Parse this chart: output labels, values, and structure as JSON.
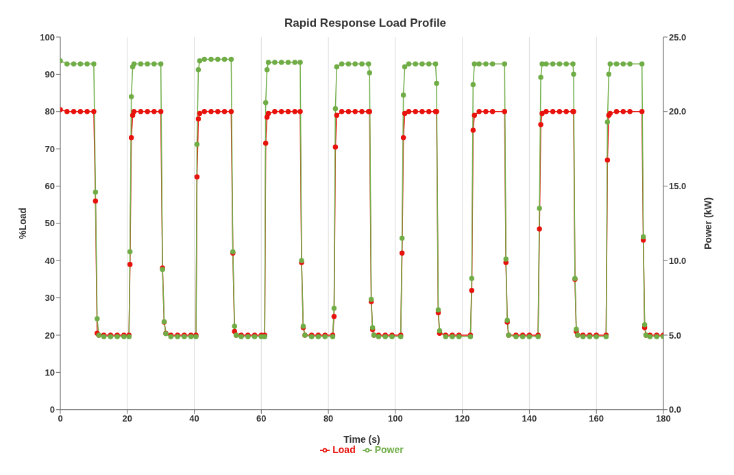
{
  "chart_data": {
    "type": "line",
    "title": "Rapid Response Load Profile",
    "xlabel": "Time (s)",
    "ylabel": "%Load",
    "y2label": "Power (kW)",
    "x": [
      0,
      2,
      4,
      6,
      8,
      10,
      10.5,
      11,
      11.5,
      13,
      15,
      17,
      19,
      20.5,
      20.8,
      21.2,
      21.6,
      22,
      24,
      26,
      28,
      30,
      30.5,
      31,
      31.5,
      33,
      35,
      37,
      39,
      40.5,
      40.8,
      41.2,
      41.6,
      43,
      45,
      47,
      49,
      51,
      51.5,
      52,
      52.5,
      54,
      56,
      58,
      60,
      61,
      61.3,
      61.7,
      62.1,
      64,
      66,
      68,
      70,
      71.6,
      72,
      72.5,
      73,
      75,
      77,
      79,
      81.3,
      81.7,
      82.1,
      82.5,
      84,
      86,
      88,
      90,
      92,
      92.3,
      92.8,
      93.2,
      93.6,
      95,
      97,
      99,
      101.6,
      102,
      102.4,
      102.8,
      104,
      106,
      108,
      110,
      112,
      112.3,
      112.8,
      113.2,
      115,
      117,
      119,
      122.4,
      122.8,
      123.2,
      123.6,
      125,
      127,
      129,
      132.6,
      133,
      133.4,
      133.8,
      136,
      138,
      140,
      142.6,
      143,
      143.4,
      143.8,
      145,
      147,
      149,
      151,
      153,
      153.2,
      153.6,
      154,
      154.4,
      156,
      158,
      160,
      162.9,
      163.3,
      163.7,
      164.1,
      166,
      168,
      170,
      173.6,
      174,
      174.4,
      174.8,
      176,
      178,
      180
    ],
    "series": [
      {
        "name": "Load",
        "color": "#e8120c",
        "values": [
          80.5,
          80,
          80,
          80,
          80,
          80,
          56,
          20.5,
          20,
          20,
          20,
          20,
          20,
          20,
          39,
          73,
          79,
          80,
          80,
          80,
          80,
          80,
          38,
          23.5,
          20.5,
          20,
          20,
          20,
          20,
          20,
          62.5,
          78,
          79.5,
          80,
          80,
          80,
          80,
          80,
          42,
          21,
          20,
          20,
          20,
          20,
          20,
          20,
          71.5,
          78.5,
          79.5,
          80,
          80,
          80,
          80,
          80,
          39.5,
          22,
          20,
          20,
          20,
          20,
          20,
          25,
          70.5,
          79,
          80,
          80,
          80,
          80,
          80,
          80,
          29,
          21.5,
          20,
          20,
          20,
          20,
          20,
          42,
          73,
          79.5,
          80,
          80,
          80,
          80,
          80,
          80,
          26,
          20.5,
          20,
          20,
          20,
          20,
          32,
          75,
          79,
          80,
          80,
          80,
          80,
          39.5,
          23.5,
          20,
          20,
          20,
          20,
          20,
          48.5,
          76.5,
          79.5,
          80,
          80,
          80,
          80,
          80,
          80,
          35,
          21,
          20,
          20,
          20,
          20,
          20,
          67,
          79,
          79.5,
          80,
          80,
          80,
          80,
          45.5,
          22,
          20,
          20,
          20,
          20
        ]
      },
      {
        "name": "Power",
        "color": "#70ad47",
        "axis": "y2",
        "values": [
          23.4,
          23.2,
          23.2,
          23.2,
          23.2,
          23.2,
          14.6,
          6.1,
          5.0,
          4.9,
          4.9,
          4.9,
          4.9,
          4.9,
          10.6,
          21.0,
          23.0,
          23.2,
          23.2,
          23.2,
          23.2,
          23.2,
          9.4,
          5.9,
          5.1,
          4.9,
          4.9,
          4.9,
          4.9,
          4.9,
          17.8,
          22.8,
          23.4,
          23.5,
          23.5,
          23.5,
          23.5,
          23.5,
          10.6,
          5.6,
          5.0,
          4.9,
          4.9,
          4.9,
          4.9,
          4.9,
          20.6,
          22.8,
          23.3,
          23.3,
          23.3,
          23.3,
          23.3,
          23.3,
          10.0,
          5.6,
          5.0,
          4.9,
          4.9,
          4.9,
          4.9,
          6.8,
          20.2,
          23.0,
          23.2,
          23.2,
          23.2,
          23.2,
          23.2,
          22.6,
          7.4,
          5.5,
          5.0,
          4.9,
          4.9,
          4.9,
          4.9,
          11.5,
          21.1,
          23.0,
          23.2,
          23.2,
          23.2,
          23.2,
          23.2,
          21.9,
          6.7,
          5.3,
          4.9,
          4.9,
          4.9,
          4.9,
          8.8,
          21.8,
          23.2,
          23.2,
          23.2,
          23.2,
          23.2,
          10.1,
          6.0,
          5.0,
          4.9,
          4.9,
          4.9,
          4.9,
          13.5,
          22.3,
          23.2,
          23.2,
          23.2,
          23.2,
          23.2,
          23.2,
          22.5,
          8.8,
          5.4,
          5.0,
          4.9,
          4.9,
          4.9,
          4.9,
          19.3,
          22.5,
          23.2,
          23.2,
          23.2,
          23.2,
          23.2,
          11.6,
          5.7,
          5.0,
          4.9,
          4.9,
          4.9
        ]
      }
    ],
    "xlim": [
      0,
      180
    ],
    "xticks": [
      0,
      20,
      40,
      60,
      80,
      100,
      120,
      140,
      160,
      180
    ],
    "ylim": [
      0,
      100
    ],
    "yticks": [
      0,
      10,
      20,
      30,
      40,
      50,
      60,
      70,
      80,
      90,
      100
    ],
    "y2lim": [
      0,
      25
    ],
    "y2ticks": [
      {
        "value": 0,
        "label": "0.0"
      },
      {
        "value": 5,
        "label": "5.0"
      },
      {
        "value": 10,
        "label": "10.0"
      },
      {
        "value": 15,
        "label": "15.0"
      },
      {
        "value": 20,
        "label": "20.0"
      },
      {
        "value": 25,
        "label": "25.0"
      }
    ],
    "grid": "x",
    "legend": "bottom",
    "marker": "circle",
    "line_style": "solid"
  }
}
